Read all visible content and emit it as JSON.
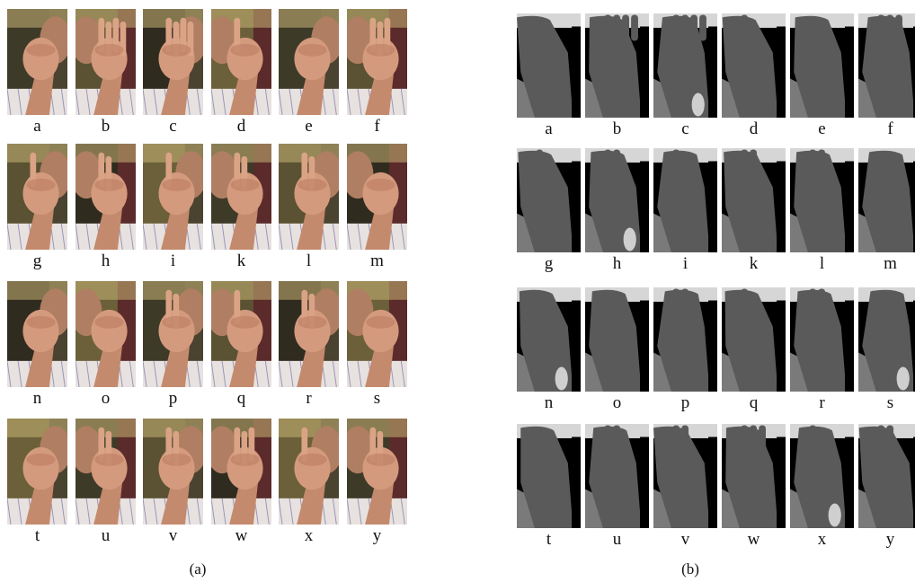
{
  "panel_a": {
    "caption": "(a)",
    "rows": [
      [
        "a",
        "b",
        "c",
        "d",
        "e",
        "f"
      ],
      [
        "g",
        "h",
        "i",
        "k",
        "l",
        "m"
      ],
      [
        "n",
        "o",
        "p",
        "q",
        "r",
        "s"
      ],
      [
        "t",
        "u",
        "v",
        "w",
        "x",
        "y"
      ]
    ]
  },
  "panel_b": {
    "caption": "(b)",
    "rows": [
      [
        "a",
        "b",
        "c",
        "d",
        "e",
        "f"
      ],
      [
        "g",
        "h",
        "i",
        "k",
        "l",
        "m"
      ],
      [
        "n",
        "o",
        "p",
        "q",
        "r",
        "s"
      ],
      [
        "t",
        "u",
        "v",
        "w",
        "x",
        "y"
      ]
    ]
  }
}
